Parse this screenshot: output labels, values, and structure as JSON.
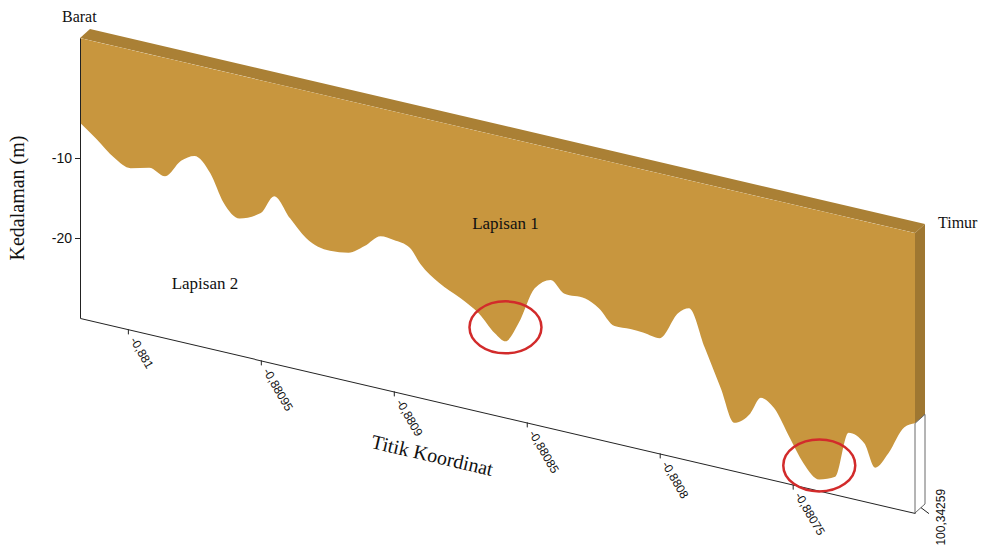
{
  "chart_data": {
    "type": "area",
    "west_label": "Barat",
    "east_label": "Timur",
    "xlabel": "Titik Koordinat",
    "ylabel": "Kedalaman (m)",
    "color": "#c8963e",
    "x": [
      -0.881018,
      -0.881012,
      -0.881005,
      -0.880999,
      -0.880992,
      -0.880986,
      -0.88098,
      -0.880975,
      -0.880969,
      -0.880964,
      -0.880958,
      -0.88095,
      -0.880945,
      -0.880939,
      -0.880933,
      -0.880924,
      -0.880917,
      -0.880911,
      -0.880905,
      -0.8809,
      -0.880894,
      -0.88089,
      -0.880883,
      -0.880875,
      -0.880868,
      -0.880862,
      -0.880858,
      -0.880853,
      -0.880847,
      -0.880841,
      -0.880836,
      -0.880828,
      -0.880823,
      -0.880817,
      -0.880811,
      -0.880806,
      -0.8808,
      -0.880793,
      -0.880789,
      -0.880783,
      -0.880777,
      -0.880772,
      -0.880766,
      -0.880762,
      -0.880757,
      -0.880751,
      -0.880746,
      -0.88074,
      -0.880734,
      -0.880729,
      -0.880723,
      -0.880719,
      -0.880714,
      -0.880708,
      -0.880704
    ],
    "values": [
      -5.6,
      -7.1,
      -9.0,
      -9.8,
      -9.2,
      -9.8,
      -7.4,
      -6.4,
      -8.1,
      -11.4,
      -12.9,
      -11.6,
      -9.1,
      -11.4,
      -13.4,
      -14.3,
      -14.0,
      -12.7,
      -11.0,
      -11.1,
      -11.6,
      -13.3,
      -15.1,
      -16.4,
      -17.8,
      -19.8,
      -20.5,
      -17.8,
      -13.0,
      -11.5,
      -12.8,
      -12.8,
      -13.6,
      -15.4,
      -15.3,
      -15.4,
      -15.6,
      -11.9,
      -11.0,
      -15.5,
      -20.1,
      -24.0,
      -22.4,
      -20.1,
      -21.0,
      -24.3,
      -27.0,
      -28.6,
      -27.8,
      -21.9,
      -22.8,
      -25.5,
      -23.3,
      -19.6,
      -18.8
    ],
    "xlim": [
      -0.881018,
      -0.880704
    ],
    "xticks": [
      {
        "value": -0.881,
        "label": "-0,881"
      },
      {
        "value": -0.88095,
        "label": "-0,88095"
      },
      {
        "value": -0.8809,
        "label": "-0,8809"
      },
      {
        "value": -0.88085,
        "label": "-0,88085"
      },
      {
        "value": -0.8808,
        "label": "-0,8808"
      },
      {
        "value": -0.88075,
        "label": "-0,88075"
      }
    ],
    "ylim": [
      -30,
      5
    ],
    "yticks": [
      -20,
      -10
    ],
    "zticks": [
      {
        "value": 100.34259,
        "label": "100,34259"
      }
    ],
    "annotations": [
      {
        "text": "Lapisan 1",
        "x": -0.880858,
        "y": -6.4
      },
      {
        "text": "Lapisan 2",
        "x": -0.880971,
        "y": -22.75
      }
    ],
    "highlight_x": [
      -0.880858,
      -0.88074
    ]
  }
}
